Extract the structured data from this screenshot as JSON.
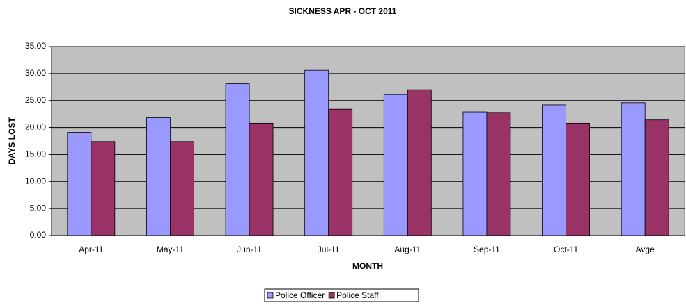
{
  "chart_data": {
    "type": "bar",
    "title": "SICKNESS APR - OCT 2011",
    "x_label": "MONTH",
    "y_label": "DAYS LOST",
    "categories": [
      "Apr-11",
      "May-11",
      "Jun-11",
      "Jul-11",
      "Aug-11",
      "Sep-11",
      "Oct-11",
      "Avge"
    ],
    "series": [
      {
        "name": "Police Officer",
        "color": "#9999ff",
        "values": [
          19.1,
          21.8,
          28.1,
          30.6,
          26.1,
          22.9,
          24.2,
          24.6
        ]
      },
      {
        "name": "Police Staff",
        "color": "#993366",
        "values": [
          17.4,
          17.4,
          20.8,
          23.4,
          27.0,
          22.8,
          20.8,
          21.4
        ]
      }
    ],
    "ylim": [
      0,
      35
    ],
    "yticks": [
      {
        "value": 0,
        "label": "0.00"
      },
      {
        "value": 5,
        "label": "5.00"
      },
      {
        "value": 10,
        "label": "10.00"
      },
      {
        "value": 15,
        "label": "15.00"
      },
      {
        "value": 20,
        "label": "20.00"
      },
      {
        "value": 25,
        "label": "25.00"
      },
      {
        "value": 30,
        "label": "30.00"
      },
      {
        "value": 35,
        "label": "35.00"
      }
    ],
    "grid": true,
    "legend": "bottom"
  }
}
